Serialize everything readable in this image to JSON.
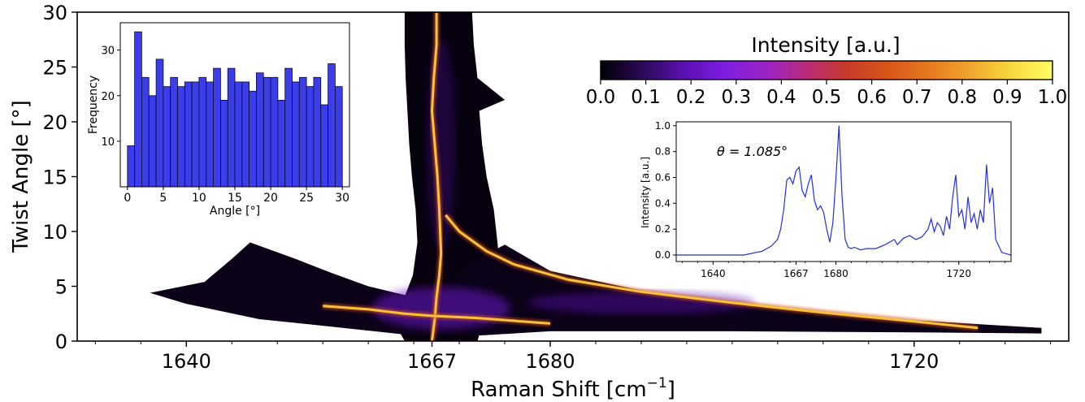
{
  "chart_data": [
    {
      "type": "heatmap",
      "title": "",
      "xlabel": "Raman Shift [cm",
      "xlabel_sup": "−1",
      "xlabel_end": "]",
      "ylabel": "Twist Angle [°]",
      "xlim": [
        1628,
        1737
      ],
      "ylim": [
        0,
        30
      ],
      "xticks": [
        1640,
        1667,
        1680,
        1720
      ],
      "xtick_labels": [
        "1640",
        "1667",
        "1680",
        "1720"
      ],
      "yticks": [
        0,
        5,
        10,
        15,
        20,
        25,
        30
      ],
      "ytick_labels": [
        "0",
        "5",
        "10",
        "15",
        "20",
        "25",
        "30"
      ],
      "colormap": "inferno-like",
      "colorbar": {
        "label": "Intensity [a.u.]",
        "range": [
          0,
          1
        ],
        "ticks": [
          0.0,
          0.1,
          0.2,
          0.3,
          0.4,
          0.5,
          0.6,
          0.7,
          0.8,
          0.9,
          1.0
        ],
        "tick_labels": [
          "0.0",
          "0.1",
          "0.2",
          "0.3",
          "0.4",
          "0.5",
          "0.6",
          "0.7",
          "0.8",
          "0.9",
          "1.0"
        ],
        "placement": "top-right",
        "colors": [
          "#000004",
          "#2a0a55",
          "#5a0fb0",
          "#7c1ee0",
          "#9b22c8",
          "#b82c78",
          "#c83a28",
          "#d8561a",
          "#e67a20",
          "#f0a62c",
          "#f8d840",
          "#fffe66"
        ]
      },
      "bright_branches": [
        {
          "x": [
            1667.5,
            1667.5,
            1667.2,
            1667.0,
            1667.3,
            1667.6,
            1667.8,
            1667.9,
            1668.0,
            1667.8,
            1667.5,
            1667.3,
            1667.0
          ],
          "y": [
            30,
            27,
            24,
            21,
            18,
            15,
            12,
            10,
            8,
            6,
            4,
            2,
            0
          ]
        },
        {
          "x": [
            1668.5,
            1670,
            1673,
            1676,
            1682,
            1690,
            1700,
            1710,
            1720,
            1727
          ],
          "y": [
            11.5,
            10,
            8.2,
            7.0,
            5.6,
            4.5,
            3.5,
            2.6,
            1.8,
            1.2
          ]
        },
        {
          "x": [
            1655,
            1660,
            1664,
            1667,
            1672,
            1680
          ],
          "y": [
            3.2,
            2.9,
            2.5,
            2.3,
            2.1,
            1.6
          ]
        }
      ]
    },
    {
      "type": "bar",
      "xlabel": "Angle [°]",
      "ylabel": "Frequency",
      "xlim": [
        -1,
        31
      ],
      "ylim": [
        0,
        36
      ],
      "xticks": [
        0,
        5,
        10,
        15,
        20,
        25,
        30
      ],
      "xtick_labels": [
        "0",
        "5",
        "10",
        "15",
        "20",
        "25",
        "30"
      ],
      "yticks": [
        10,
        20,
        30
      ],
      "ytick_labels": [
        "10",
        "20",
        "30"
      ],
      "bin_width": 1.0,
      "bin_starts": [
        0,
        1,
        2,
        3,
        4,
        5,
        6,
        7,
        8,
        9,
        10,
        11,
        12,
        13,
        14,
        15,
        16,
        17,
        18,
        19,
        20,
        21,
        22,
        23,
        24,
        25,
        26,
        27,
        28,
        29
      ],
      "values": [
        9,
        34,
        24,
        20,
        28,
        22,
        24,
        22,
        23,
        23,
        24,
        23,
        26,
        19,
        26,
        23,
        23,
        21,
        25,
        24,
        24,
        19,
        26,
        23,
        24,
        22,
        24,
        18,
        27,
        22
      ],
      "bar_color": "#3a3de8"
    },
    {
      "type": "line",
      "annotation": "θ = 1.085°",
      "xlabel": "",
      "ylabel": "Intensity [a.u.]",
      "xlim": [
        1628,
        1737
      ],
      "ylim": [
        -0.05,
        1.03
      ],
      "xticks": [
        1640,
        1667,
        1680,
        1720
      ],
      "xtick_labels": [
        "1640",
        "1667",
        "1680",
        "1720"
      ],
      "yticks": [
        0.0,
        0.2,
        0.4,
        0.6,
        0.8,
        1.0
      ],
      "ytick_labels": [
        "0.0",
        "0.2",
        "0.4",
        "0.6",
        "0.8",
        "1.0"
      ],
      "line_color": "#2430d8",
      "x": [
        1628,
        1650,
        1656,
        1659,
        1661,
        1662,
        1663,
        1664,
        1665,
        1666,
        1667,
        1668,
        1669,
        1670,
        1671,
        1672,
        1673,
        1674,
        1675,
        1676,
        1677,
        1678,
        1679,
        1680,
        1681,
        1682,
        1683,
        1684,
        1685,
        1686,
        1688,
        1690,
        1693,
        1696,
        1699,
        1700,
        1702,
        1704,
        1706,
        1708,
        1710,
        1711,
        1712,
        1713,
        1714,
        1715,
        1716,
        1717,
        1718,
        1719,
        1720,
        1721,
        1722,
        1723,
        1724,
        1725,
        1726,
        1727,
        1728,
        1729,
        1730,
        1731,
        1732,
        1734,
        1737
      ],
      "y": [
        0.0,
        0.0,
        0.03,
        0.07,
        0.12,
        0.2,
        0.35,
        0.58,
        0.6,
        0.55,
        0.65,
        0.68,
        0.5,
        0.45,
        0.55,
        0.62,
        0.42,
        0.35,
        0.38,
        0.33,
        0.2,
        0.1,
        0.25,
        0.6,
        1.0,
        0.45,
        0.12,
        0.06,
        0.05,
        0.06,
        0.04,
        0.05,
        0.05,
        0.08,
        0.12,
        0.08,
        0.13,
        0.15,
        0.12,
        0.14,
        0.2,
        0.28,
        0.18,
        0.25,
        0.22,
        0.15,
        0.3,
        0.2,
        0.45,
        0.62,
        0.3,
        0.35,
        0.2,
        0.45,
        0.25,
        0.32,
        0.2,
        0.35,
        0.25,
        0.7,
        0.4,
        0.52,
        0.12,
        0.02,
        0.0
      ]
    }
  ]
}
